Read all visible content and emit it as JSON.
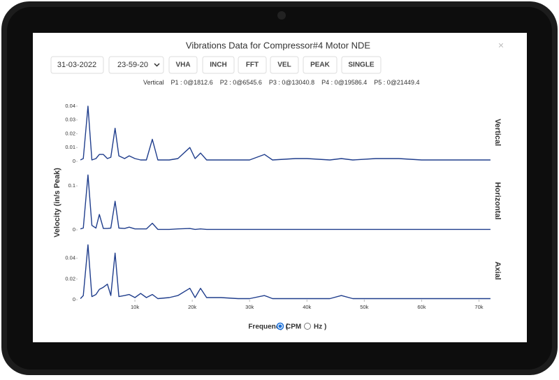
{
  "header": {
    "title": "Vibrations Data for Compressor#4 Motor NDE",
    "close": "×"
  },
  "controls": {
    "date": "31-03-2022",
    "time": "23-59-20",
    "buttons": [
      "VHA",
      "INCH",
      "FFT",
      "VEL",
      "PEAK",
      "SINGLE"
    ]
  },
  "peaks": {
    "channel": "Vertical",
    "items": [
      "P1 : 0@1812.6",
      "P2 : 0@6545.6",
      "P3 : 0@13040.8",
      "P4 : 0@19586.4",
      "P5 : 0@21449.4"
    ]
  },
  "chart_data": [
    {
      "type": "line",
      "title": "Vertical",
      "ylabel": "Velocity (in/s Peak)",
      "color": "#1f3d8c",
      "x": [
        500,
        1000,
        1812.6,
        2500,
        3200,
        3800,
        4500,
        5200,
        5800,
        6545.6,
        7200,
        8200,
        9000,
        10000,
        11000,
        12000,
        13040.8,
        14000,
        16000,
        17500,
        19586.4,
        20500,
        21449.4,
        22500,
        25000,
        28000,
        30000,
        32600,
        34000,
        38000,
        40000,
        44000,
        46000,
        48000,
        52000,
        56000,
        60000,
        65000,
        68000,
        72000
      ],
      "values": [
        0.001,
        0.002,
        0.04,
        0.001,
        0.002,
        0.005,
        0.005,
        0.002,
        0.003,
        0.024,
        0.004,
        0.002,
        0.004,
        0.002,
        0.001,
        0.001,
        0.016,
        0.001,
        0.001,
        0.002,
        0.01,
        0.002,
        0.006,
        0.001,
        0.001,
        0.001,
        0.001,
        0.005,
        0.001,
        0.002,
        0.002,
        0.001,
        0.002,
        0.001,
        0.002,
        0.002,
        0.001,
        0.001,
        0.001,
        0.001
      ],
      "xlim": [
        0,
        72500
      ],
      "ylim": [
        0,
        0.042
      ],
      "yticks": [
        0,
        0.01,
        0.02,
        0.03,
        0.04
      ]
    },
    {
      "type": "line",
      "title": "Horizontal",
      "color": "#1f3d8c",
      "x": [
        500,
        1000,
        1812.6,
        2500,
        3200,
        3800,
        4500,
        5200,
        5800,
        6545.6,
        7200,
        8200,
        9000,
        10000,
        11000,
        12000,
        13040.8,
        14000,
        16000,
        17500,
        19586.4,
        20500,
        21449.4,
        22500,
        25000,
        28000,
        30000,
        32600,
        34000,
        38000,
        40000,
        44000,
        46000,
        48000,
        52000,
        56000,
        60000,
        65000,
        68000,
        72000
      ],
      "values": [
        0.002,
        0.004,
        0.125,
        0.01,
        0.004,
        0.035,
        0.003,
        0.003,
        0.004,
        0.065,
        0.004,
        0.003,
        0.006,
        0.002,
        0.002,
        0.002,
        0.015,
        0.001,
        0.001,
        0.002,
        0.003,
        0.001,
        0.002,
        0.001,
        0.001,
        0.001,
        0.001,
        0.001,
        0.001,
        0.001,
        0.001,
        0.001,
        0.001,
        0.001,
        0.001,
        0.001,
        0.001,
        0.001,
        0.001,
        0.001
      ],
      "xlim": [
        0,
        72500
      ],
      "ylim": [
        0,
        0.132
      ],
      "yticks": [
        0,
        0.1
      ]
    },
    {
      "type": "line",
      "title": "Axial",
      "color": "#1f3d8c",
      "x": [
        500,
        1000,
        1812.6,
        2500,
        3200,
        3800,
        4500,
        5200,
        5800,
        6545.6,
        7200,
        8200,
        9000,
        10000,
        11000,
        12000,
        13040.8,
        14000,
        16000,
        17500,
        19586.4,
        20500,
        21449.4,
        22500,
        25000,
        28000,
        30000,
        32600,
        34000,
        38000,
        40000,
        44000,
        46000,
        48000,
        52000,
        56000,
        60000,
        65000,
        68000,
        72000
      ],
      "values": [
        0.001,
        0.004,
        0.053,
        0.003,
        0.005,
        0.01,
        0.012,
        0.015,
        0.004,
        0.045,
        0.003,
        0.004,
        0.005,
        0.002,
        0.006,
        0.002,
        0.005,
        0.001,
        0.002,
        0.004,
        0.011,
        0.002,
        0.011,
        0.002,
        0.002,
        0.001,
        0.001,
        0.004,
        0.001,
        0.001,
        0.001,
        0.001,
        0.004,
        0.001,
        0.001,
        0.001,
        0.001,
        0.001,
        0.001,
        0.001
      ],
      "xlim": [
        0,
        72500
      ],
      "ylim": [
        0,
        0.056
      ],
      "yticks": [
        0,
        0.02,
        0.04
      ],
      "xticks": [
        {
          "value": 10000,
          "label": "10k"
        },
        {
          "value": 20000,
          "label": "20k"
        },
        {
          "value": 30000,
          "label": "30k"
        },
        {
          "value": 40000,
          "label": "40k"
        },
        {
          "value": 50000,
          "label": "50k"
        },
        {
          "value": 60000,
          "label": "60k"
        },
        {
          "value": 70000,
          "label": "70k"
        }
      ]
    }
  ],
  "footer": {
    "label": "Frequency (",
    "options": [
      "CPM",
      "Hz"
    ],
    "end": ")"
  }
}
